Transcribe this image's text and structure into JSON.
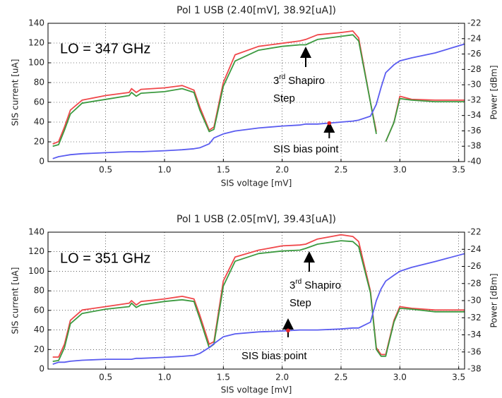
{
  "chart_data": [
    {
      "type": "line",
      "title": "Pol 1 USB (2.40[mV], 38.92[uA])",
      "xlabel": "SIS voltage [mV]",
      "ylabel": "SIS current [uA]",
      "y2label": "Power [dBm]",
      "lo_label": "LO = 347 GHz",
      "shapiro": {
        "number": "3",
        "suffix": "rd",
        "text": "Shapiro",
        "line2": "Step"
      },
      "bias_label": "SIS bias point",
      "bias_point": {
        "x": 2.4,
        "y": 38.92,
        "color": "#e8262a"
      },
      "grid": true,
      "xlim": [
        0.01,
        3.55
      ],
      "xticks": [
        0.5,
        {
          "value": 1,
          "label": "1.0"
        },
        1.5,
        {
          "value": 2,
          "label": "2.0"
        },
        2.5,
        {
          "value": 3,
          "label": "3.0"
        },
        3.5
      ],
      "ylim": [
        0,
        140
      ],
      "yticks": [
        0,
        20,
        40,
        60,
        80,
        100,
        120,
        140
      ],
      "y2lim": [
        -40,
        -22
      ],
      "y2ticks": [
        -40,
        -38,
        -36,
        -34,
        -32,
        -30,
        -28,
        -26,
        -24,
        -22
      ],
      "x": [
        0.05,
        0.1,
        0.15,
        0.2,
        0.3,
        0.5,
        0.7,
        0.72,
        0.76,
        0.8,
        1.0,
        1.15,
        1.25,
        1.3,
        1.38,
        1.42,
        1.5,
        1.6,
        1.8,
        2.0,
        2.15,
        2.2,
        2.3,
        2.5,
        2.6,
        2.65,
        2.75,
        2.8,
        2.84,
        2.88,
        2.95,
        3.0,
        3.1,
        3.3,
        3.55
      ],
      "series": [
        {
          "color": "#f0474a",
          "axis": "y2",
          "values": [
            -37.7,
            -37.4,
            -35.5,
            -33.3,
            -32.0,
            -31.4,
            -31.0,
            -30.5,
            -31.0,
            -30.6,
            -30.4,
            -30.1,
            -30.7,
            -32.9,
            -35.9,
            -35.5,
            -29.7,
            -26.1,
            -25.0,
            -24.6,
            -24.3,
            -24.1,
            -23.5,
            -23.2,
            -23.0,
            -23.9,
            -32.3,
            -36.1,
            null,
            -37.4,
            -34.9,
            -31.5,
            -31.9,
            -32.0,
            -32.0
          ]
        },
        {
          "color": "#3c9a40",
          "axis": "y2",
          "values": [
            -38.0,
            -37.8,
            -35.9,
            -33.8,
            -32.4,
            -31.9,
            -31.4,
            -31.0,
            -31.5,
            -31.1,
            -30.9,
            -30.5,
            -31.0,
            -33.3,
            -36.1,
            -35.8,
            -30.2,
            -26.9,
            -25.5,
            -25.0,
            -24.8,
            -24.8,
            -24.1,
            -23.7,
            -23.5,
            -24.3,
            -32.3,
            -36.4,
            null,
            -37.4,
            -34.9,
            -31.8,
            -32.0,
            -32.2,
            -32.2
          ]
        },
        {
          "color": "#5a5cf0",
          "values": [
            3,
            5,
            6,
            7,
            8,
            9,
            10,
            10,
            10,
            10,
            11,
            12,
            13,
            14,
            18,
            24,
            28,
            31,
            34,
            36,
            37,
            38,
            38,
            40,
            41,
            42,
            46,
            58,
            75,
            90,
            98,
            102,
            105,
            110,
            119
          ]
        }
      ]
    },
    {
      "type": "line",
      "title": "Pol 1 USB (2.05[mV], 39.43[uA])",
      "xlabel": "SIS voltage [mV]",
      "ylabel": "SIS current [uA]",
      "y2label": "Power [dBm]",
      "lo_label": "LO = 351 GHz",
      "shapiro": {
        "number": "3",
        "suffix": "rd",
        "text": "Shapiro",
        "line2": "Step"
      },
      "bias_label": "SIS bias point",
      "bias_point": {
        "x": 2.05,
        "y": 39.43,
        "color": "#e8262a"
      },
      "grid": true,
      "xlim": [
        0.01,
        3.55
      ],
      "xticks": [
        0.5,
        {
          "value": 1,
          "label": "1.0"
        },
        1.5,
        {
          "value": 2,
          "label": "2.0"
        },
        2.5,
        {
          "value": 3,
          "label": "3.0"
        },
        3.5
      ],
      "ylim": [
        0,
        140
      ],
      "yticks": [
        0,
        20,
        40,
        60,
        80,
        100,
        120,
        140
      ],
      "y2lim": [
        -38,
        -22
      ],
      "y2ticks": [
        -38,
        -36,
        -34,
        -32,
        -30,
        -28,
        -26,
        -24,
        -22
      ],
      "x": [
        0.05,
        0.1,
        0.15,
        0.2,
        0.3,
        0.5,
        0.7,
        0.72,
        0.76,
        0.8,
        1.0,
        1.15,
        1.25,
        1.3,
        1.38,
        1.42,
        1.5,
        1.6,
        1.8,
        2.0,
        2.15,
        2.2,
        2.3,
        2.5,
        2.6,
        2.65,
        2.75,
        2.8,
        2.84,
        2.88,
        2.95,
        3.0,
        3.1,
        3.3,
        3.55
      ],
      "series": [
        {
          "color": "#f0474a",
          "axis": "y2",
          "values": [
            -36.6,
            -36.6,
            -35.1,
            -32.3,
            -31.1,
            -30.7,
            -30.3,
            -30.0,
            -30.5,
            -30.1,
            -29.8,
            -29.5,
            -29.8,
            -31.7,
            -35.1,
            -34.8,
            -27.7,
            -24.9,
            -24.1,
            -23.6,
            -23.5,
            -23.4,
            -22.8,
            -22.3,
            -22.5,
            -23.1,
            -28.9,
            -35.5,
            -36.3,
            -36.3,
            -32.3,
            -30.7,
            -30.9,
            -31.1,
            -31.1
          ]
        },
        {
          "color": "#3c9a40",
          "axis": "y2",
          "values": [
            -37.1,
            -37.0,
            -35.5,
            -32.7,
            -31.5,
            -31.0,
            -30.7,
            -30.3,
            -30.8,
            -30.5,
            -30.1,
            -29.9,
            -30.1,
            -32.1,
            -35.5,
            -35.1,
            -28.3,
            -25.4,
            -24.5,
            -24.2,
            -24.1,
            -23.9,
            -23.4,
            -23.0,
            -23.1,
            -23.7,
            -29.1,
            -35.7,
            -36.5,
            -36.5,
            -32.5,
            -30.9,
            -31.0,
            -31.3,
            -31.3
          ]
        },
        {
          "color": "#5a5cf0",
          "values": [
            5,
            7,
            7,
            8,
            9,
            10,
            10,
            10,
            11,
            11,
            12,
            13,
            14,
            16,
            22,
            26,
            33,
            36,
            38,
            39,
            40,
            40,
            40,
            41,
            42,
            42,
            48,
            70,
            82,
            90,
            96,
            100,
            104,
            110,
            118
          ]
        }
      ]
    }
  ]
}
